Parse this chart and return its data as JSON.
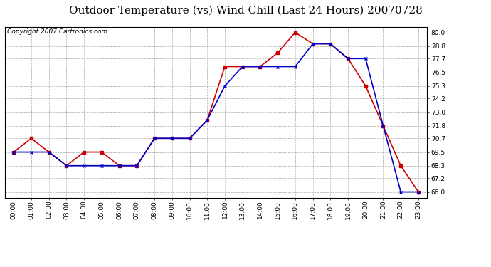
{
  "title": "Outdoor Temperature (vs) Wind Chill (Last 24 Hours) 20070728",
  "copyright": "Copyright 2007 Cartronics.com",
  "hours": [
    "00:00",
    "01:00",
    "02:00",
    "03:00",
    "04:00",
    "05:00",
    "06:00",
    "07:00",
    "08:00",
    "09:00",
    "10:00",
    "11:00",
    "12:00",
    "13:00",
    "14:00",
    "15:00",
    "16:00",
    "17:00",
    "18:00",
    "19:00",
    "20:00",
    "21:00",
    "22:00",
    "23:00"
  ],
  "outdoor_temp": [
    69.5,
    70.7,
    69.5,
    68.3,
    69.5,
    69.5,
    68.3,
    68.3,
    70.7,
    70.7,
    70.7,
    72.3,
    77.0,
    77.0,
    77.0,
    78.2,
    80.0,
    79.0,
    79.0,
    77.7,
    75.3,
    71.8,
    68.3,
    66.0
  ],
  "wind_chill": [
    69.5,
    69.5,
    69.5,
    68.3,
    68.3,
    68.3,
    68.3,
    68.3,
    70.7,
    70.7,
    70.7,
    72.3,
    75.3,
    77.0,
    77.0,
    77.0,
    77.0,
    79.0,
    79.0,
    77.7,
    77.7,
    71.8,
    66.0,
    66.0
  ],
  "temp_color": "#cc0000",
  "wind_color": "#0000cc",
  "ylim_min": 65.5,
  "ylim_max": 80.5,
  "yticks": [
    66.0,
    67.2,
    68.3,
    69.5,
    70.7,
    71.8,
    73.0,
    74.2,
    75.3,
    76.5,
    77.7,
    78.8,
    80.0
  ],
  "background_color": "#ffffff",
  "plot_bg_color": "#ffffff",
  "grid_color": "#aaaaaa",
  "title_fontsize": 11,
  "copyright_fontsize": 6.5,
  "tick_fontsize": 6.5
}
